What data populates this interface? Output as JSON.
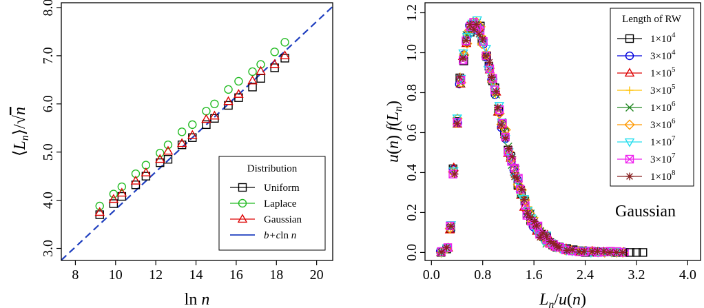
{
  "chart_data": [
    {
      "type": "scatter",
      "xlabel": "ln n",
      "ylabel": "⟨L_n⟩/√n",
      "xlim": [
        7.3,
        20.8
      ],
      "ylim": [
        2.75,
        8.1
      ],
      "xticks": [
        "8",
        "10",
        "12",
        "14",
        "16",
        "18",
        "20"
      ],
      "xtick_values": [
        8,
        10,
        12,
        14,
        16,
        18,
        20
      ],
      "yticks": [
        "3.0",
        "4.0",
        "5.0",
        "6.0",
        "7.0",
        "8.0"
      ],
      "ytick_values": [
        3,
        4,
        5,
        6,
        7,
        8
      ],
      "legend_title": "Distribution",
      "legend_position": "bottom-right",
      "series": [
        {
          "name": "Uniform",
          "marker": "square",
          "color": "#000000",
          "x": [
            9.21,
            9.9,
            10.31,
            11.0,
            11.51,
            12.21,
            12.61,
            13.3,
            13.82,
            14.51,
            14.92,
            15.61,
            16.12,
            16.81,
            17.22,
            17.91,
            18.42
          ],
          "y": [
            3.7,
            3.93,
            4.08,
            4.32,
            4.5,
            4.78,
            4.85,
            5.15,
            5.3,
            5.57,
            5.7,
            5.97,
            6.13,
            6.35,
            6.53,
            6.75,
            6.95
          ]
        },
        {
          "name": "Laplace",
          "marker": "circle",
          "color": "#22bb22",
          "x": [
            9.21,
            9.9,
            10.31,
            11.0,
            11.51,
            12.21,
            12.61,
            13.3,
            13.82,
            14.51,
            14.92,
            15.61,
            16.12,
            16.81,
            17.22,
            17.91,
            18.42
          ],
          "y": [
            3.88,
            4.13,
            4.28,
            4.55,
            4.73,
            4.98,
            5.15,
            5.42,
            5.57,
            5.85,
            6.0,
            6.3,
            6.47,
            6.67,
            6.82,
            7.08,
            7.28
          ]
        },
        {
          "name": "Gaussian",
          "marker": "triangle",
          "color": "#dd0000",
          "x": [
            9.21,
            9.9,
            10.31,
            11.0,
            11.51,
            12.21,
            12.61,
            13.3,
            13.82,
            14.51,
            14.92,
            15.61,
            16.12,
            16.81,
            17.22,
            17.91,
            18.42
          ],
          "y": [
            3.75,
            4.02,
            4.15,
            4.4,
            4.57,
            4.85,
            5.02,
            5.18,
            5.35,
            5.68,
            5.75,
            6.05,
            6.2,
            6.48,
            6.68,
            6.82,
            7.0
          ]
        }
      ],
      "fit_line": {
        "name": "b+cln n",
        "color": "#1f3fbf",
        "style": "dashed",
        "b": -0.09,
        "c": 0.39
      }
    },
    {
      "type": "scatter",
      "xlabel": "L_n/u(n)",
      "ylabel": "u(n) f(L_n)",
      "xlim": [
        -0.1,
        4.2
      ],
      "ylim": [
        -0.04,
        1.25
      ],
      "xticks": [
        "0.0",
        "0.8",
        "1.6",
        "2.4",
        "3.2",
        "4.0"
      ],
      "xtick_values": [
        0.0,
        0.8,
        1.6,
        2.4,
        3.2,
        4.0
      ],
      "yticks": [
        "0.0",
        "0.2",
        "0.4",
        "0.6",
        "0.8",
        "1.0",
        "1.2"
      ],
      "ytick_values": [
        0.0,
        0.2,
        0.4,
        0.6,
        0.8,
        1.0,
        1.2
      ],
      "annotation": "Gaussian",
      "legend_title": "Length of RW",
      "legend_position": "top-right",
      "series": [
        {
          "name": "1×10",
          "sup": "4",
          "marker": "square",
          "color": "#000000"
        },
        {
          "name": "3×10",
          "sup": "4",
          "marker": "circle",
          "color": "#0000dd"
        },
        {
          "name": "1×10",
          "sup": "5",
          "marker": "triangle",
          "color": "#dd0000"
        },
        {
          "name": "3×10",
          "sup": "5",
          "marker": "plus",
          "color": "#ffc000"
        },
        {
          "name": "1×10",
          "sup": "6",
          "marker": "cross",
          "color": "#228822"
        },
        {
          "name": "3×10",
          "sup": "6",
          "marker": "diamond",
          "color": "#ff9900"
        },
        {
          "name": "1×10",
          "sup": "7",
          "marker": "triangle-down",
          "color": "#22ddee"
        },
        {
          "name": "3×10",
          "sup": "7",
          "marker": "square-x",
          "color": "#ee22ee"
        },
        {
          "name": "1×10",
          "sup": "8",
          "marker": "asterisk",
          "color": "#882222"
        }
      ],
      "curve": {
        "x": [
          0.15,
          0.25,
          0.3,
          0.35,
          0.4,
          0.45,
          0.5,
          0.55,
          0.6,
          0.65,
          0.7,
          0.75,
          0.8,
          0.85,
          0.9,
          0.95,
          1.0,
          1.05,
          1.1,
          1.15,
          1.2,
          1.25,
          1.3,
          1.35,
          1.4,
          1.45,
          1.5,
          1.55,
          1.6,
          1.65,
          1.7,
          1.75,
          1.8,
          1.85,
          1.9,
          1.95,
          2.0,
          2.1,
          2.2,
          2.3,
          2.4,
          2.5,
          2.6,
          2.7,
          2.8,
          2.9,
          3.0
        ],
        "y": [
          0.0,
          0.02,
          0.12,
          0.4,
          0.66,
          0.86,
          0.98,
          1.07,
          1.12,
          1.14,
          1.14,
          1.11,
          1.06,
          1.0,
          0.93,
          0.87,
          0.8,
          0.72,
          0.65,
          0.59,
          0.52,
          0.46,
          0.4,
          0.35,
          0.3,
          0.25,
          0.21,
          0.18,
          0.15,
          0.12,
          0.1,
          0.08,
          0.065,
          0.05,
          0.04,
          0.03,
          0.025,
          0.015,
          0.01,
          0.007,
          0.005,
          0.003,
          0.002,
          0.001,
          0.001,
          0.0,
          0.0
        ]
      },
      "tail_points": [
        3.1,
        3.2,
        3.3
      ]
    }
  ]
}
